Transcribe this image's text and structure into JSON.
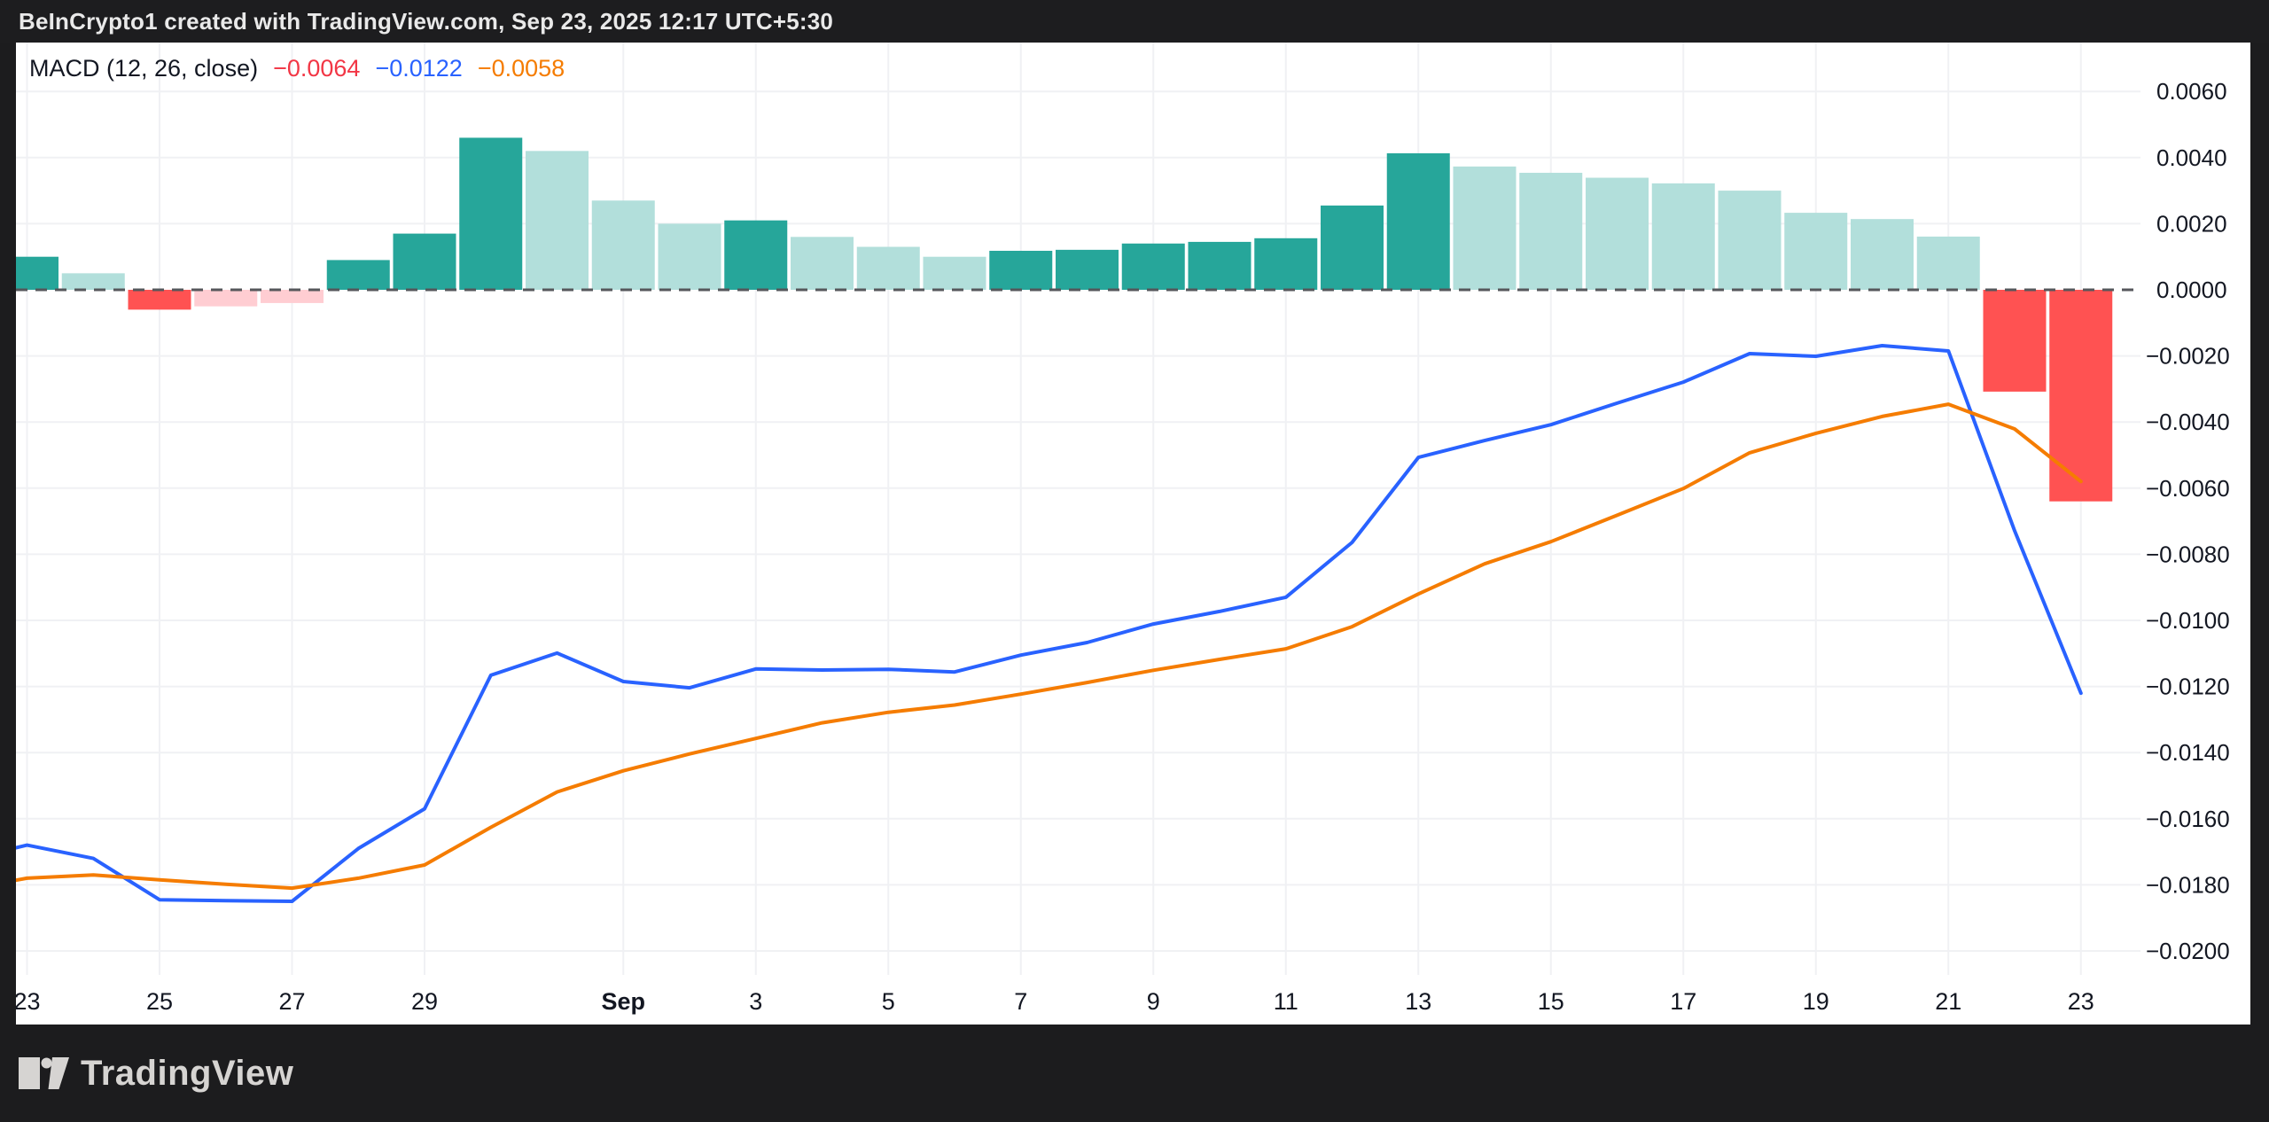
{
  "header": {
    "title": "BeInCrypto1 created with TradingView.com, Sep 23, 2025 12:17 UTC+5:30"
  },
  "legend": {
    "title": "MACD (12, 26, close)",
    "histogram_value": "−0.0064",
    "macd_value": "−0.0122",
    "signal_value": "−0.0058"
  },
  "footer": {
    "brand": "TradingView"
  },
  "chart_data": {
    "type": "bar",
    "title": "MACD (12, 26, close)",
    "xlabel": "",
    "ylabel": "",
    "grid": true,
    "legend_position": "top-left",
    "ylim": [
      -0.021,
      0.0075
    ],
    "zero_line": {
      "value": 0,
      "style": "dashed"
    },
    "dates": [
      "Aug 23",
      "Aug 24",
      "Aug 25",
      "Aug 26",
      "Aug 27",
      "Aug 28",
      "Aug 29",
      "Aug 30",
      "Aug 31",
      "Sep 1",
      "Sep 2",
      "Sep 3",
      "Sep 4",
      "Sep 5",
      "Sep 6",
      "Sep 7",
      "Sep 8",
      "Sep 9",
      "Sep 10",
      "Sep 11",
      "Sep 12",
      "Sep 13",
      "Sep 14",
      "Sep 15",
      "Sep 16",
      "Sep 17",
      "Sep 18",
      "Sep 19",
      "Sep 20",
      "Sep 21",
      "Sep 22",
      "Sep 23"
    ],
    "series": [
      {
        "name": "Histogram",
        "type": "bar",
        "values": [
          0.001,
          0.0005,
          -0.0006,
          -0.0005,
          -0.0004,
          0.0009,
          0.0017,
          0.0046,
          0.0042,
          0.0027,
          0.002,
          0.0021,
          0.0016,
          0.0013,
          0.001,
          0.00118,
          0.00121,
          0.0014,
          0.00145,
          0.00156,
          0.00255,
          0.00413,
          0.00373,
          0.00354,
          0.00339,
          0.00322,
          0.003,
          0.00233,
          0.00214,
          0.00161,
          -0.00308,
          -0.0064
        ]
      },
      {
        "name": "MACD",
        "type": "line",
        "color": "#2962FF",
        "values": [
          -0.0168,
          -0.0172,
          -0.01845,
          -0.01848,
          -0.0185,
          -0.0169,
          -0.0157,
          -0.01166,
          -0.01099,
          -0.01185,
          -0.01204,
          -0.01147,
          -0.0115,
          -0.01148,
          -0.01156,
          -0.01105,
          -0.01067,
          -0.01011,
          -0.00973,
          -0.0093,
          -0.00764,
          -0.00507,
          -0.00456,
          -0.00408,
          -0.00343,
          -0.00279,
          -0.00193,
          -0.00201,
          -0.00169,
          -0.00185,
          -0.00729,
          -0.0122
        ]
      },
      {
        "name": "Signal",
        "type": "line",
        "color": "#F57C00",
        "values": [
          -0.0178,
          -0.0177,
          -0.01785,
          -0.01798,
          -0.0181,
          -0.0178,
          -0.0174,
          -0.01626,
          -0.01519,
          -0.01455,
          -0.01404,
          -0.01357,
          -0.0131,
          -0.01278,
          -0.01256,
          -0.01223,
          -0.01188,
          -0.01151,
          -0.01118,
          -0.01086,
          -0.01019,
          -0.0092,
          -0.00829,
          -0.00762,
          -0.00682,
          -0.00601,
          -0.00493,
          -0.00434,
          -0.00383,
          -0.00346,
          -0.00421,
          -0.0058
        ]
      }
    ],
    "left_edge": {
      "macd": -0.01688,
      "signal": -0.01786
    },
    "palette": {
      "grow_above": "#26A69A",
      "fall_above": "#B2DFDB",
      "fall_below": "#FF5252",
      "grow_below": "#FFCDD2",
      "macd_line": "#2962FF",
      "signal_line": "#F57C00",
      "grid": "#f0f1f4",
      "zero_dash": "#56575b",
      "axis_text": "#131722"
    },
    "y_ticks": [
      {
        "label": "0.0060",
        "value": 0.006
      },
      {
        "label": "0.0040",
        "value": 0.004
      },
      {
        "label": "0.0020",
        "value": 0.002
      },
      {
        "label": "0.0000",
        "value": 0.0
      },
      {
        "label": "−0.0020",
        "value": -0.002
      },
      {
        "label": "−0.0040",
        "value": -0.004
      },
      {
        "label": "−0.0060",
        "value": -0.006
      },
      {
        "label": "−0.0080",
        "value": -0.008
      },
      {
        "label": "−0.0100",
        "value": -0.01
      },
      {
        "label": "−0.0120",
        "value": -0.012
      },
      {
        "label": "−0.0140",
        "value": -0.014
      },
      {
        "label": "−0.0160",
        "value": -0.016
      },
      {
        "label": "−0.0180",
        "value": -0.018
      },
      {
        "label": "−0.0200",
        "value": -0.02
      }
    ],
    "x_ticks": [
      {
        "label": "23",
        "day": 0,
        "bold": false
      },
      {
        "label": "25",
        "day": 2,
        "bold": false
      },
      {
        "label": "27",
        "day": 4,
        "bold": false
      },
      {
        "label": "29",
        "day": 6,
        "bold": false
      },
      {
        "label": "Sep",
        "day": 9,
        "bold": true
      },
      {
        "label": "3",
        "day": 11,
        "bold": false
      },
      {
        "label": "5",
        "day": 13,
        "bold": false
      },
      {
        "label": "7",
        "day": 15,
        "bold": false
      },
      {
        "label": "9",
        "day": 17,
        "bold": false
      },
      {
        "label": "11",
        "day": 19,
        "bold": false
      },
      {
        "label": "13",
        "day": 21,
        "bold": false
      },
      {
        "label": "15",
        "day": 23,
        "bold": false
      },
      {
        "label": "17",
        "day": 25,
        "bold": false
      },
      {
        "label": "19",
        "day": 27,
        "bold": false
      },
      {
        "label": "21",
        "day": 29,
        "bold": false
      },
      {
        "label": "23",
        "day": 31,
        "bold": false
      }
    ]
  }
}
